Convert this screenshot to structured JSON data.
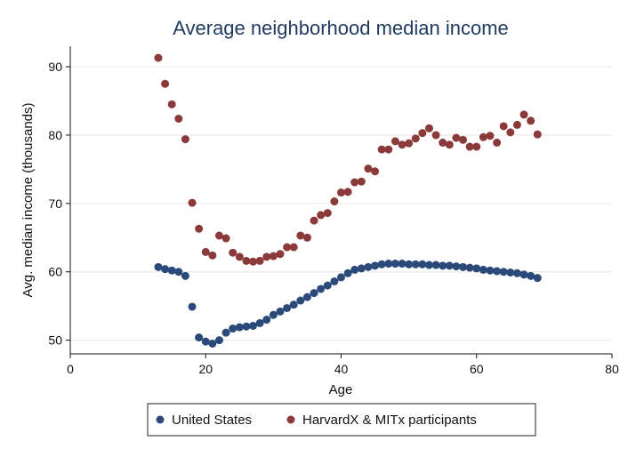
{
  "chart_data": {
    "type": "scatter",
    "title": "Average neighborhood median income",
    "xlabel": "Age",
    "ylabel": "Avg. median income (thousands)",
    "xlim": [
      0,
      80
    ],
    "ylim": [
      48,
      93
    ],
    "xticks": [
      0,
      20,
      40,
      60,
      80
    ],
    "yticks": [
      50,
      60,
      70,
      80,
      90
    ],
    "grid": true,
    "legend_position": "bottom",
    "series": [
      {
        "name": "United States",
        "color": "#2b4a7a",
        "points": [
          [
            13,
            60.7
          ],
          [
            14,
            60.4
          ],
          [
            15,
            60.2
          ],
          [
            16,
            60.0
          ],
          [
            17,
            59.4
          ],
          [
            18,
            54.9
          ],
          [
            19,
            50.4
          ],
          [
            20,
            49.8
          ],
          [
            21,
            49.5
          ],
          [
            22,
            50.0
          ],
          [
            23,
            51.1
          ],
          [
            24,
            51.7
          ],
          [
            25,
            51.9
          ],
          [
            26,
            52.0
          ],
          [
            27,
            52.1
          ],
          [
            28,
            52.5
          ],
          [
            29,
            53.0
          ],
          [
            30,
            53.7
          ],
          [
            31,
            54.2
          ],
          [
            32,
            54.7
          ],
          [
            33,
            55.2
          ],
          [
            34,
            55.8
          ],
          [
            35,
            56.3
          ],
          [
            36,
            56.9
          ],
          [
            37,
            57.5
          ],
          [
            38,
            58.0
          ],
          [
            39,
            58.6
          ],
          [
            40,
            59.2
          ],
          [
            41,
            59.8
          ],
          [
            42,
            60.3
          ],
          [
            43,
            60.5
          ],
          [
            44,
            60.7
          ],
          [
            45,
            60.9
          ],
          [
            46,
            61.1
          ],
          [
            47,
            61.2
          ],
          [
            48,
            61.2
          ],
          [
            49,
            61.2
          ],
          [
            50,
            61.1
          ],
          [
            51,
            61.1
          ],
          [
            52,
            61.1
          ],
          [
            53,
            61.0
          ],
          [
            54,
            61.0
          ],
          [
            55,
            60.9
          ],
          [
            56,
            60.9
          ],
          [
            57,
            60.8
          ],
          [
            58,
            60.7
          ],
          [
            59,
            60.6
          ],
          [
            60,
            60.5
          ],
          [
            61,
            60.3
          ],
          [
            62,
            60.2
          ],
          [
            63,
            60.1
          ],
          [
            64,
            60.0
          ],
          [
            65,
            59.9
          ],
          [
            66,
            59.8
          ],
          [
            67,
            59.6
          ],
          [
            68,
            59.4
          ],
          [
            69,
            59.1
          ]
        ]
      },
      {
        "name": "HarvardX & MITx participants",
        "color": "#8b3a3a",
        "points": [
          [
            13,
            91.3
          ],
          [
            14,
            87.5
          ],
          [
            15,
            84.5
          ],
          [
            16,
            82.4
          ],
          [
            17,
            79.4
          ],
          [
            18,
            70.1
          ],
          [
            19,
            66.3
          ],
          [
            20,
            62.9
          ],
          [
            21,
            62.4
          ],
          [
            22,
            65.3
          ],
          [
            23,
            64.9
          ],
          [
            24,
            62.8
          ],
          [
            25,
            62.2
          ],
          [
            26,
            61.6
          ],
          [
            27,
            61.5
          ],
          [
            28,
            61.6
          ],
          [
            29,
            62.2
          ],
          [
            30,
            62.3
          ],
          [
            31,
            62.6
          ],
          [
            32,
            63.6
          ],
          [
            33,
            63.6
          ],
          [
            34,
            65.3
          ],
          [
            35,
            65.0
          ],
          [
            36,
            67.5
          ],
          [
            37,
            68.3
          ],
          [
            38,
            68.6
          ],
          [
            39,
            70.3
          ],
          [
            40,
            71.6
          ],
          [
            41,
            71.7
          ],
          [
            42,
            73.1
          ],
          [
            43,
            73.2
          ],
          [
            44,
            75.1
          ],
          [
            45,
            74.7
          ],
          [
            46,
            77.9
          ],
          [
            47,
            77.9
          ],
          [
            48,
            79.1
          ],
          [
            49,
            78.6
          ],
          [
            50,
            78.8
          ],
          [
            51,
            79.5
          ],
          [
            52,
            80.3
          ],
          [
            53,
            81.0
          ],
          [
            54,
            80.0
          ],
          [
            55,
            78.9
          ],
          [
            56,
            78.6
          ],
          [
            57,
            79.6
          ],
          [
            58,
            79.3
          ],
          [
            59,
            78.3
          ],
          [
            60,
            78.3
          ],
          [
            61,
            79.7
          ],
          [
            62,
            79.9
          ],
          [
            63,
            78.9
          ],
          [
            64,
            81.3
          ],
          [
            65,
            80.4
          ],
          [
            66,
            81.5
          ],
          [
            67,
            83.0
          ],
          [
            68,
            82.1
          ],
          [
            69,
            80.1
          ]
        ]
      }
    ]
  }
}
